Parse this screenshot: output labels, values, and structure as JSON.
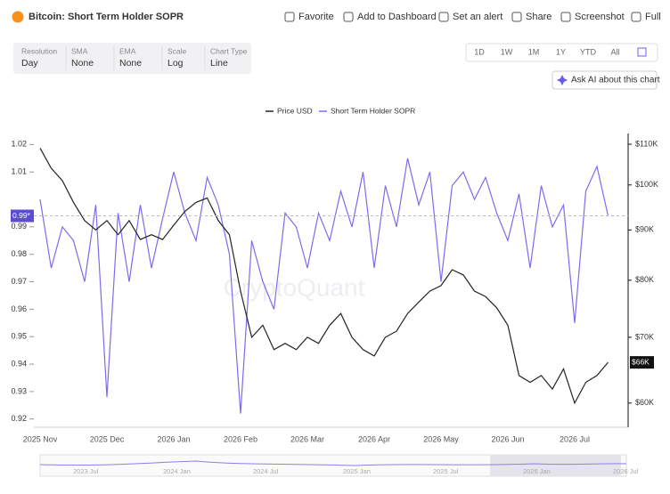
{
  "header": {
    "title": "Bitcoin: Short Term Holder SOPR",
    "actions": [
      "Favorite",
      "Add to Dashboard",
      "Set an alert",
      "Share",
      "Screenshot",
      "Full"
    ]
  },
  "controls": [
    {
      "label": "Resolution",
      "value": "Day"
    },
    {
      "label": "SMA",
      "value": "None"
    },
    {
      "label": "EMA",
      "value": "None"
    },
    {
      "label": "Scale",
      "value": "Log"
    },
    {
      "label": "Chart Type",
      "value": "Line"
    }
  ],
  "ranges": [
    "1D",
    "1W",
    "1M",
    "1Y",
    "YTD",
    "All"
  ],
  "ask_ai": "Ask AI about this chart",
  "watermark": "CryptoQuant",
  "navigator_labels": [
    "2023 Jul",
    "2024 Jan",
    "2024 Jul",
    "2025 Jan",
    "2025 Jul",
    "2026 Jan",
    "2026 Jul"
  ],
  "chart_data": {
    "type": "line",
    "categories": [
      "2025 Nov",
      null,
      null,
      null,
      null,
      null,
      "2025 Dec",
      null,
      null,
      null,
      null,
      null,
      "2026 Jan",
      null,
      null,
      null,
      null,
      null,
      "2026 Feb",
      null,
      null,
      null,
      null,
      null,
      "2026 Mar",
      null,
      null,
      null,
      null,
      null,
      "2026 Apr",
      null,
      null,
      null,
      null,
      null,
      "2026 May",
      null,
      null,
      null,
      null,
      null,
      "2026 Jun",
      null,
      null,
      null,
      null,
      null,
      "2026 Jul",
      null,
      null,
      null
    ],
    "series": [
      {
        "name": "Short Term Holder SOPR",
        "color": "#7b6cf0",
        "last_label": "0.99*",
        "values": [
          1.0,
          0.975,
          0.99,
          0.985,
          0.97,
          0.998,
          0.928,
          0.995,
          0.97,
          0.998,
          0.975,
          0.993,
          1.01,
          0.995,
          0.985,
          1.008,
          0.998,
          0.98,
          0.922,
          0.985,
          0.97,
          0.96,
          0.995,
          0.99,
          0.975,
          0.995,
          0.985,
          1.003,
          0.99,
          1.01,
          0.975,
          1.005,
          0.99,
          1.015,
          0.998,
          1.01,
          0.97,
          1.005,
          1.01,
          1.0,
          1.008,
          0.995,
          0.985,
          1.002,
          0.975,
          1.005,
          0.99,
          0.998,
          0.955,
          1.003,
          1.012,
          0.994
        ]
      },
      {
        "name": "Price USD",
        "color": "#222222",
        "axis": "y2",
        "last_label": "$66K",
        "values": [
          109000,
          104000,
          101000,
          96000,
          92000,
          90000,
          92000,
          89000,
          92000,
          88000,
          89000,
          88000,
          91000,
          94000,
          96000,
          97000,
          92000,
          89000,
          78000,
          70000,
          72000,
          68000,
          69000,
          68000,
          70000,
          69000,
          72000,
          74000,
          70000,
          68000,
          67000,
          70000,
          71000,
          74000,
          76000,
          78000,
          79000,
          82000,
          81000,
          78000,
          77000,
          75000,
          72000,
          64000,
          63000,
          64000,
          62000,
          65000,
          60000,
          63000,
          64000,
          66000
        ]
      }
    ],
    "ylim": [
      0.917,
      1.024
    ],
    "yticks": [
      0.92,
      0.93,
      0.94,
      0.95,
      0.96,
      0.97,
      0.98,
      0.99,
      1.01,
      1.02
    ],
    "y2lim": [
      56700,
      112800
    ],
    "y2scale": "log",
    "y2ticks": [
      {
        "value": 60000,
        "label": "$60K"
      },
      {
        "value": 70000,
        "label": "$70K"
      },
      {
        "value": 80000,
        "label": "$80K"
      },
      {
        "value": 90000,
        "label": "$90K"
      },
      {
        "value": 100000,
        "label": "$100K"
      },
      {
        "value": 110000,
        "label": "$110K"
      }
    ],
    "legend": "top"
  }
}
